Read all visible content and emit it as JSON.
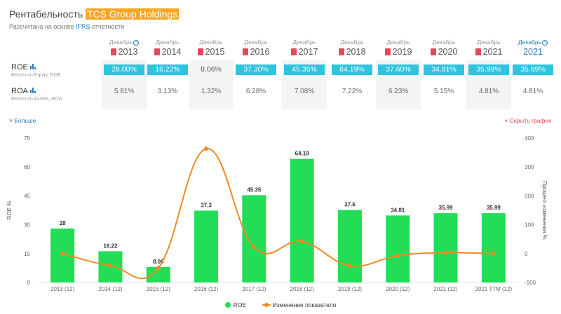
{
  "header": {
    "title_prefix": "Рентабельность",
    "title_company": "TCS Group Holdings",
    "subtitle_prefix": "Рассчитана на основе",
    "subtitle_accent": "IFRS",
    "subtitle_suffix": "отчетности"
  },
  "years": [
    {
      "month": "Декабрь",
      "year": "2013",
      "info": true,
      "pdf": true
    },
    {
      "month": "Декабрь",
      "year": "2014",
      "info": false,
      "pdf": true
    },
    {
      "month": "Декабрь",
      "year": "2015",
      "info": false,
      "pdf": true
    },
    {
      "month": "Декабрь",
      "year": "2016",
      "info": false,
      "pdf": true
    },
    {
      "month": "Декабрь",
      "year": "2017",
      "info": false,
      "pdf": true
    },
    {
      "month": "Декабрь",
      "year": "2018",
      "info": false,
      "pdf": true
    },
    {
      "month": "Декабрь",
      "year": "2019",
      "info": false,
      "pdf": true
    },
    {
      "month": "Декабрь",
      "year": "2020",
      "info": false,
      "pdf": true
    },
    {
      "month": "Декабрь",
      "year": "2021",
      "info": false,
      "pdf": true
    },
    {
      "month": "Декабрь",
      "year": "2021",
      "info": true,
      "pdf": false
    }
  ],
  "roe": {
    "name": "ROE",
    "desc": "Return on Equity, ROE",
    "values": [
      "28.00%",
      "16.22%",
      "8.06%",
      "37.30%",
      "45.35%",
      "64.19%",
      "37.60%",
      "34.81%",
      "35.99%",
      "35.99%"
    ],
    "highlighted": [
      true,
      true,
      false,
      true,
      true,
      true,
      true,
      true,
      true,
      true
    ]
  },
  "roa": {
    "name": "ROA",
    "desc": "Return on Assets, ROA",
    "values": [
      "5.81%",
      "3.13%",
      "1.32%",
      "6.28%",
      "7.08%",
      "7.22%",
      "6.23%",
      "5.15%",
      "4.81%",
      "4.81%"
    ]
  },
  "links": {
    "more": "Больше",
    "hide_chart": "Скрыть график"
  },
  "colors": {
    "bar": "#22dd55",
    "line": "#f08a24",
    "highlight": "#2ec4dc",
    "accent": "#2a7ab8"
  },
  "chart_data": {
    "type": "bar",
    "categories": [
      "2013 (12)",
      "2014 (12)",
      "2015 (12)",
      "2016 (12)",
      "2017 (12)",
      "2018 (12)",
      "2019 (12)",
      "2020 (12)",
      "2021 (12)",
      "2021 TTM (12)"
    ],
    "series": [
      {
        "name": "ROE",
        "type": "bar",
        "axis": "left",
        "values": [
          28,
          16.22,
          8.06,
          37.3,
          45.35,
          64.19,
          37.6,
          34.81,
          35.99,
          35.99
        ]
      },
      {
        "name": "Изменение показателя",
        "type": "line",
        "axis": "right",
        "values": [
          0,
          -42,
          -50,
          363,
          22,
          42,
          -42,
          -7,
          3,
          0
        ]
      }
    ],
    "ylabel": "ROE %",
    "y2label": "Процент изменения %",
    "ylim": [
      0,
      75
    ],
    "y2lim": [
      -100,
      400
    ],
    "yticks": [
      0,
      15,
      30,
      45,
      60,
      75
    ],
    "y2ticks": [
      -100,
      0,
      100,
      200,
      300,
      400
    ],
    "legend_position": "bottom",
    "grid": false
  }
}
